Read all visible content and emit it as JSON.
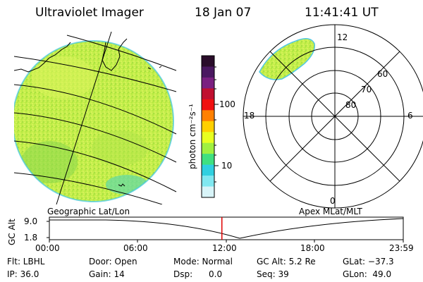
{
  "header": {
    "title": "Ultraviolet Imager",
    "date": "18 Jan 07",
    "time": "11:41:41 UT"
  },
  "colorbar": {
    "label": "photon cm⁻²s⁻¹",
    "ticks": [
      "100",
      "10"
    ],
    "colors": [
      "#2a0d2a",
      "#4a1860",
      "#7a2080",
      "#c01030",
      "#f01010",
      "#ff8000",
      "#ffd000",
      "#e8ff20",
      "#a0f040",
      "#40e080",
      "#30d0e0",
      "#80e8f0",
      "#d8f4f8"
    ]
  },
  "left_map": {
    "caption": "Geographic Lat/Lon",
    "fill": "#c8f050"
  },
  "right_map": {
    "caption": "Apex MLat/MLT",
    "mlt_labels": {
      "top": "12",
      "left": "18",
      "right": "6",
      "bottom": "0"
    },
    "lat_labels": [
      "60",
      "70",
      "80"
    ]
  },
  "altitude_plot": {
    "ylabel": "GC Alt",
    "yticks": [
      "9.0",
      "1.8"
    ],
    "xticks": [
      "00:00",
      "06:00",
      "12:00",
      "18:00",
      "23:59"
    ],
    "marker_time_hours": 11.7,
    "marker_color": "#e00000"
  },
  "info": {
    "row1": {
      "flt": "Flt: LBHL",
      "door": "Door: Open",
      "mode": "Mode: Normal",
      "gcalt": "GC Alt: 5.2 Re",
      "glat": "GLat: −37.3"
    },
    "row2": {
      "ip": "IP: 36.0",
      "gain": "Gain: 14",
      "dsp": "Dsp:      0.0",
      "seq": "Seq: 39",
      "glon": "GLon:  49.0"
    }
  }
}
